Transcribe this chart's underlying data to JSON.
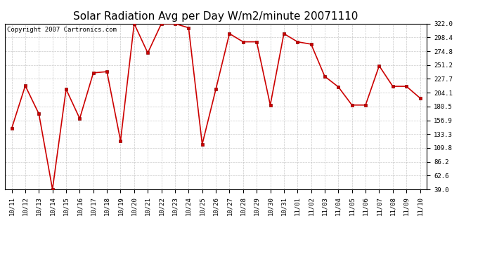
{
  "title": "Solar Radiation Avg per Day W/m2/minute 20071110",
  "copyright": "Copyright 2007 Cartronics.com",
  "labels": [
    "10/11",
    "10/12",
    "10/13",
    "10/14",
    "10/15",
    "10/16",
    "10/17",
    "10/18",
    "10/19",
    "10/20",
    "10/21",
    "10/22",
    "10/23",
    "10/24",
    "10/25",
    "10/26",
    "10/27",
    "10/28",
    "10/29",
    "10/30",
    "10/31",
    "11/01",
    "11/02",
    "11/03",
    "11/04",
    "11/05",
    "11/06",
    "11/07",
    "11/08",
    "11/09",
    "11/10"
  ],
  "values": [
    143,
    216,
    168,
    39,
    210,
    160,
    238,
    240,
    122,
    322,
    272,
    322,
    322,
    315,
    116,
    210,
    305,
    291,
    291,
    183,
    305,
    291,
    287,
    232,
    214,
    183,
    183,
    250,
    215,
    215,
    195
  ],
  "ylim": [
    39.0,
    322.0
  ],
  "yticks": [
    39.0,
    62.6,
    86.2,
    109.8,
    133.3,
    156.9,
    180.5,
    204.1,
    227.7,
    251.2,
    274.8,
    298.4,
    322.0
  ],
  "line_color": "#cc0000",
  "marker_color": "#cc0000",
  "bg_color": "#ffffff",
  "plot_bg_color": "#ffffff",
  "grid_color": "#bbbbbb",
  "title_fontsize": 11,
  "tick_fontsize": 6.5,
  "copyright_fontsize": 6.5
}
